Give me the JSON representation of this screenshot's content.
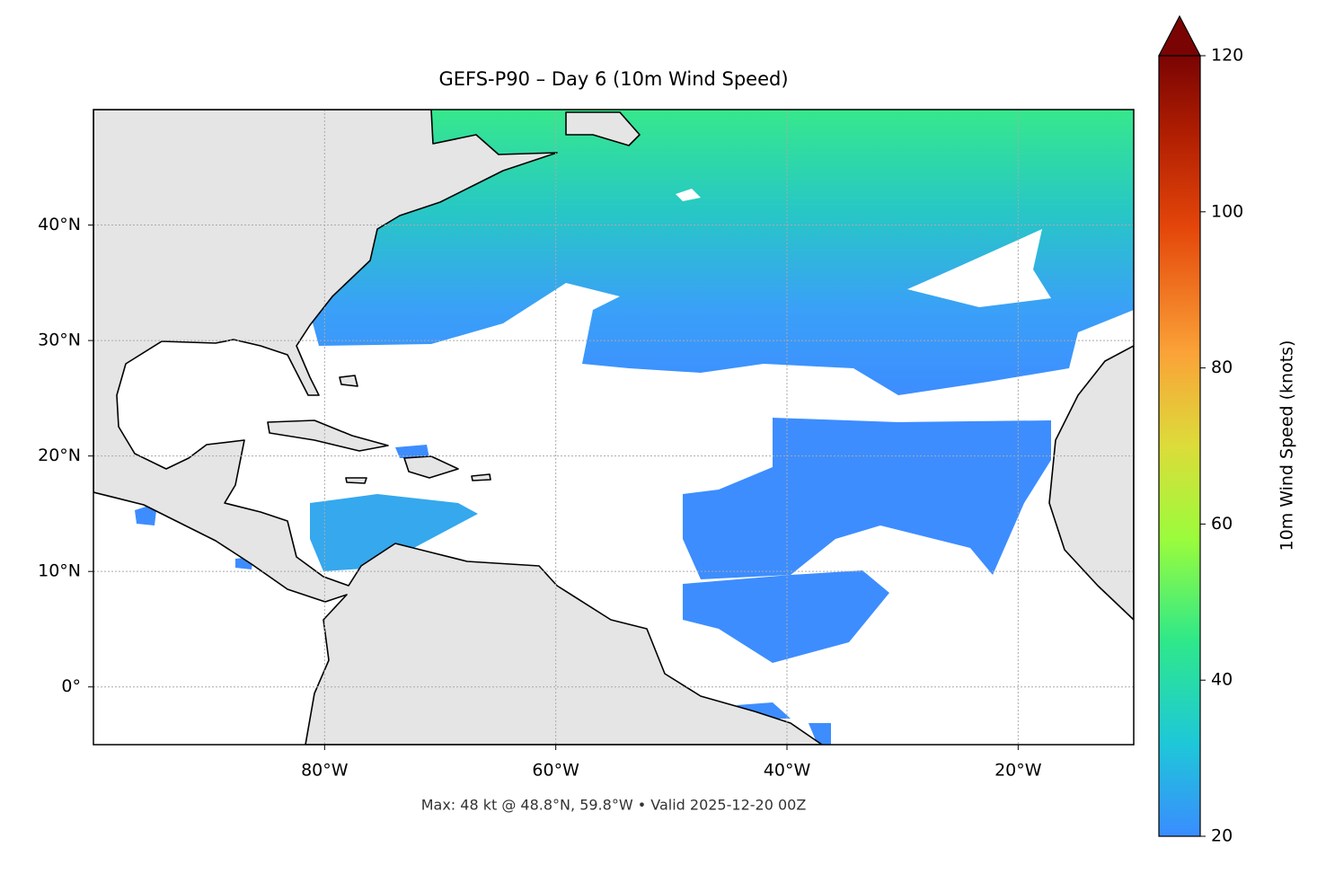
{
  "map": {
    "title": "GEFS-P90 – Day 6 (10m Wind Speed)",
    "xlim": [
      -100,
      -10
    ],
    "ylim": [
      -5,
      50
    ],
    "xticks": [
      {
        "value": -80,
        "label": "80°W"
      },
      {
        "value": -60,
        "label": "60°W"
      },
      {
        "value": -40,
        "label": "40°W"
      },
      {
        "value": -20,
        "label": "20°W"
      }
    ],
    "yticks": [
      {
        "value": 0,
        "label": "0°"
      },
      {
        "value": 10,
        "label": "10°N"
      },
      {
        "value": 20,
        "label": "20°N"
      },
      {
        "value": 30,
        "label": "30°N"
      },
      {
        "value": 40,
        "label": "40°N"
      }
    ],
    "grid": true,
    "colorbar": {
      "label": "10m Wind Speed (knots)",
      "lim": [
        20,
        120
      ],
      "ticks": [
        20,
        40,
        60,
        80,
        100,
        120
      ]
    },
    "footer": "Max: 48 kt @ 48.8°N, 59.8°W • Valid 2025-12-20 00Z"
  }
}
